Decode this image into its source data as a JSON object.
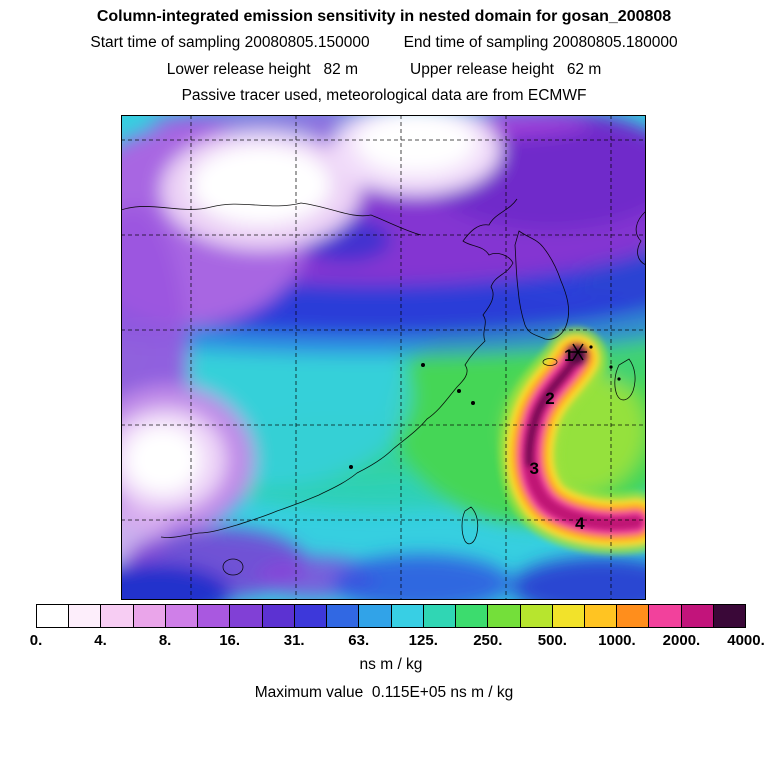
{
  "header": {
    "title": "Column-integrated emission sensitivity in nested domain for gosan_200808",
    "start_time": "Start time of sampling 20080805.150000",
    "end_time": "End time of sampling 20080805.180000",
    "lower_release": "Lower release height   82 m",
    "upper_release": "Upper release height   62 m",
    "tracer_line": "Passive tracer used, meteorological data are from ECMWF"
  },
  "chart_data": {
    "type": "heatmap",
    "title": "Column-integrated emission sensitivity in nested domain for gosan_200808",
    "units": "ns m / kg",
    "max_value": "0.115E+05",
    "max_value_label": "Maximum value  0.115E+05 ns m / kg",
    "colorbar": {
      "levels": [
        0,
        4,
        8,
        16,
        31,
        63,
        125,
        250,
        500,
        1000,
        2000,
        4000
      ],
      "tick_labels": [
        "0.",
        "4.",
        "8.",
        "16.",
        "31.",
        "63.",
        "125.",
        "250.",
        "500.",
        "1000.",
        "2000.",
        "4000."
      ],
      "colors": [
        "#ffffff",
        "#fdeefb",
        "#f7cdf3",
        "#eaa5ea",
        "#cf7fe8",
        "#a958e0",
        "#8140d6",
        "#5c32d2",
        "#3d38da",
        "#3168e3",
        "#31a3e8",
        "#38cfe4",
        "#30d6b4",
        "#3cdc6e",
        "#74df3a",
        "#b7e52e",
        "#f2e22a",
        "#ffc422",
        "#ff8e1c",
        "#f2419c",
        "#c2147b",
        "#3a0838"
      ]
    },
    "trajectory_points": [
      {
        "label": "1",
        "x": 0.853,
        "y": 0.497
      },
      {
        "label": "2",
        "x": 0.817,
        "y": 0.586
      },
      {
        "label": "3",
        "x": 0.787,
        "y": 0.73
      },
      {
        "label": "4",
        "x": 0.874,
        "y": 0.843
      }
    ]
  }
}
